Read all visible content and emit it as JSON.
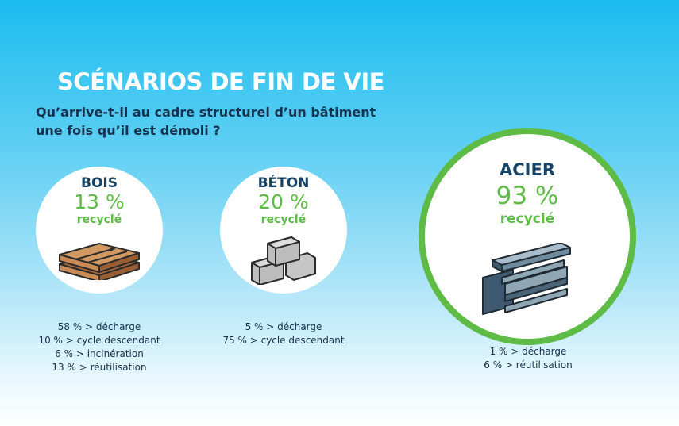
{
  "title": "SCÉNARIOS DE FIN DE VIE",
  "subtitle": "Qu’arrive-t-il au cadre structurel d’un bâtiment une fois qu’il est démoli ?",
  "colors": {
    "accent": "#5dbb46",
    "navy": "#17456a"
  },
  "materials": [
    {
      "name": "BOIS",
      "percent": "13 %",
      "label": "recyclé",
      "icon": "wood-planks-icon",
      "details": [
        "58 % > décharge",
        "10 % > cycle descendant",
        "6 % > incinération",
        "13 % > réutilisation"
      ]
    },
    {
      "name": "BÉTON",
      "percent": "20 %",
      "label": "recyclé",
      "icon": "concrete-blocks-icon",
      "details": [
        "5 % > décharge",
        "75 % > cycle descendant"
      ]
    },
    {
      "name": "ACIER",
      "percent": "93 %",
      "label": "recyclé",
      "icon": "steel-beams-icon",
      "highlighted": true,
      "details": [
        "1 % > décharge",
        "6 % > réutilisation"
      ]
    }
  ]
}
